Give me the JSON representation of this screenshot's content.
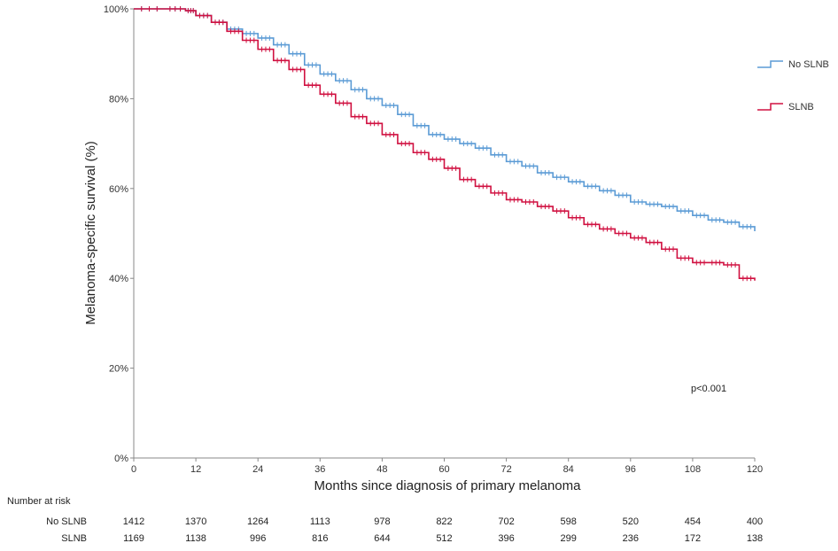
{
  "chart_data": {
    "type": "line",
    "subtype": "kaplan-meier",
    "title": "",
    "xlabel": "Months since diagnosis of primary melanoma",
    "ylabel": "Melanoma-specific survival (%)",
    "xlim": [
      0,
      120
    ],
    "ylim": [
      0,
      100
    ],
    "x_ticks": [
      0,
      12,
      24,
      36,
      48,
      60,
      72,
      84,
      96,
      108,
      120
    ],
    "y_ticks": [
      0,
      20,
      40,
      60,
      80,
      100
    ],
    "y_tick_labels": [
      "0%",
      "20%",
      "40%",
      "60%",
      "80%",
      "100%"
    ],
    "grid": false,
    "legend_position": "top-right",
    "annotation": "p<0.001",
    "series": [
      {
        "name": "No SLNB",
        "color": "#5b9bd5",
        "points": [
          [
            0,
            100
          ],
          [
            6,
            100
          ],
          [
            10,
            99.6
          ],
          [
            12,
            98.5
          ],
          [
            15,
            97
          ],
          [
            18,
            95.5
          ],
          [
            21,
            94.5
          ],
          [
            24,
            93.5
          ],
          [
            27,
            92
          ],
          [
            30,
            90
          ],
          [
            33,
            87.5
          ],
          [
            36,
            85.5
          ],
          [
            39,
            84
          ],
          [
            42,
            82
          ],
          [
            45,
            80
          ],
          [
            48,
            78.5
          ],
          [
            51,
            76.5
          ],
          [
            54,
            74
          ],
          [
            57,
            72
          ],
          [
            60,
            71
          ],
          [
            63,
            70
          ],
          [
            66,
            69
          ],
          [
            69,
            67.5
          ],
          [
            72,
            66
          ],
          [
            75,
            65
          ],
          [
            78,
            63.5
          ],
          [
            81,
            62.5
          ],
          [
            84,
            61.5
          ],
          [
            87,
            60.5
          ],
          [
            90,
            59.5
          ],
          [
            93,
            58.5
          ],
          [
            96,
            57
          ],
          [
            99,
            56.5
          ],
          [
            102,
            56
          ],
          [
            105,
            55
          ],
          [
            108,
            54
          ],
          [
            111,
            53
          ],
          [
            114,
            52.5
          ],
          [
            117,
            51.5
          ],
          [
            120,
            50.5
          ]
        ]
      },
      {
        "name": "SLNB",
        "color": "#d01040",
        "points": [
          [
            0,
            100
          ],
          [
            6,
            100
          ],
          [
            10,
            99.6
          ],
          [
            12,
            98.5
          ],
          [
            15,
            97
          ],
          [
            18,
            95
          ],
          [
            21,
            93
          ],
          [
            24,
            91
          ],
          [
            27,
            88.5
          ],
          [
            30,
            86.5
          ],
          [
            33,
            83
          ],
          [
            36,
            81
          ],
          [
            39,
            79
          ],
          [
            42,
            76
          ],
          [
            45,
            74.5
          ],
          [
            48,
            72
          ],
          [
            51,
            70
          ],
          [
            54,
            68
          ],
          [
            57,
            66.5
          ],
          [
            60,
            64.5
          ],
          [
            63,
            62
          ],
          [
            66,
            60.5
          ],
          [
            69,
            59
          ],
          [
            72,
            57.5
          ],
          [
            75,
            57
          ],
          [
            78,
            56
          ],
          [
            81,
            55
          ],
          [
            84,
            53.5
          ],
          [
            87,
            52
          ],
          [
            90,
            51
          ],
          [
            93,
            50
          ],
          [
            96,
            49
          ],
          [
            99,
            48
          ],
          [
            102,
            46.5
          ],
          [
            105,
            44.5
          ],
          [
            108,
            43.5
          ],
          [
            111,
            43.5
          ],
          [
            114,
            43
          ],
          [
            117,
            40
          ],
          [
            120,
            39.5
          ]
        ]
      }
    ]
  },
  "risk_table": {
    "title": "Number at risk",
    "rows": [
      {
        "label": "No SLNB",
        "values": [
          1412,
          1370,
          1264,
          1113,
          978,
          822,
          702,
          598,
          520,
          454,
          400
        ]
      },
      {
        "label": "SLNB",
        "values": [
          1169,
          1138,
          996,
          816,
          644,
          512,
          396,
          299,
          236,
          172,
          138
        ]
      }
    ]
  }
}
